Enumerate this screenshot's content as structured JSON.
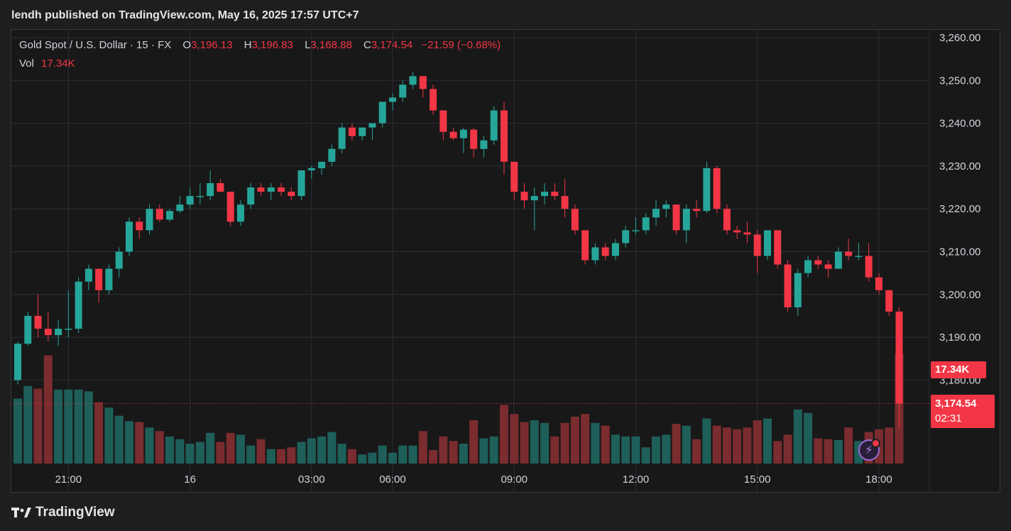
{
  "header": {
    "published_by": "lendh published on TradingView.com, May 16, 2025 17:57 UTC+7"
  },
  "legend": {
    "symbol": "Gold Spot / U.S. Dollar · 15 · FX",
    "o_label": "O",
    "o_value": "3,196.13",
    "h_label": "H",
    "h_value": "3,196.83",
    "l_label": "L",
    "l_value": "3,168.88",
    "c_label": "C",
    "c_value": "3,174.54",
    "change": "−21.59 (−0.68%)",
    "vol_label": "Vol",
    "vol_value": "17.34K"
  },
  "badges": {
    "volume": "17.34K",
    "price": "3,174.54",
    "countdown": "02:31"
  },
  "footer": {
    "brand": "TradingView"
  },
  "colors": {
    "up": "#26a69a",
    "down": "#f23645",
    "up_vol": "#1f5f5a",
    "down_vol": "#7a2c2f",
    "grid": "#2a2e39",
    "background": "#181818"
  },
  "icons": {
    "alert": "lightning-icon"
  },
  "chart_data": {
    "type": "candlestick",
    "title": "Gold Spot / U.S. Dollar",
    "interval": "15",
    "ylim": [
      3170,
      3260
    ],
    "y_ticks": [
      "3,260.00",
      "3,250.00",
      "3,240.00",
      "3,230.00",
      "3,220.00",
      "3,210.00",
      "3,200.00",
      "3,190.00",
      "3,180.00"
    ],
    "x_ticks": [
      "21:00",
      "16",
      "03:00",
      "06:00",
      "09:00",
      "12:00",
      "15:00",
      "18:00"
    ],
    "last_price": 3174.54,
    "series": [
      {
        "o": 3180,
        "h": 3189,
        "l": 3179,
        "c": 3188.5,
        "v": 0.72
      },
      {
        "o": 3188.5,
        "h": 3196,
        "l": 3188,
        "c": 3195,
        "v": 0.86
      },
      {
        "o": 3195,
        "h": 3200,
        "l": 3190,
        "c": 3192,
        "v": 0.83
      },
      {
        "o": 3192,
        "h": 3196,
        "l": 3189,
        "c": 3190.5,
        "v": 1.2
      },
      {
        "o": 3190.5,
        "h": 3194,
        "l": 3188,
        "c": 3192,
        "v": 0.82
      },
      {
        "o": 3192,
        "h": 3201,
        "l": 3190,
        "c": 3192,
        "v": 0.82
      },
      {
        "o": 3192,
        "h": 3204,
        "l": 3191,
        "c": 3203,
        "v": 0.82
      },
      {
        "o": 3203,
        "h": 3207,
        "l": 3201,
        "c": 3206,
        "v": 0.8
      },
      {
        "o": 3206,
        "h": 3206,
        "l": 3198,
        "c": 3201,
        "v": 0.68
      },
      {
        "o": 3201,
        "h": 3207,
        "l": 3200,
        "c": 3206,
        "v": 0.62
      },
      {
        "o": 3206,
        "h": 3211,
        "l": 3204,
        "c": 3210,
        "v": 0.53
      },
      {
        "o": 3210,
        "h": 3218,
        "l": 3209,
        "c": 3217,
        "v": 0.47
      },
      {
        "o": 3217,
        "h": 3218,
        "l": 3213,
        "c": 3215,
        "v": 0.46
      },
      {
        "o": 3215,
        "h": 3221,
        "l": 3214,
        "c": 3220,
        "v": 0.4
      },
      {
        "o": 3220,
        "h": 3221,
        "l": 3217,
        "c": 3217.5,
        "v": 0.36
      },
      {
        "o": 3217.5,
        "h": 3220,
        "l": 3217,
        "c": 3219.5,
        "v": 0.3
      },
      {
        "o": 3219.5,
        "h": 3223,
        "l": 3219,
        "c": 3221,
        "v": 0.27
      },
      {
        "o": 3221,
        "h": 3225,
        "l": 3220,
        "c": 3223,
        "v": 0.22
      },
      {
        "o": 3223,
        "h": 3226,
        "l": 3221,
        "c": 3223,
        "v": 0.24
      },
      {
        "o": 3223,
        "h": 3229,
        "l": 3222,
        "c": 3226,
        "v": 0.34
      },
      {
        "o": 3226,
        "h": 3227,
        "l": 3224,
        "c": 3224,
        "v": 0.24
      },
      {
        "o": 3224,
        "h": 3224,
        "l": 3216,
        "c": 3217,
        "v": 0.34
      },
      {
        "o": 3217,
        "h": 3222,
        "l": 3216,
        "c": 3221,
        "v": 0.32
      },
      {
        "o": 3221,
        "h": 3226,
        "l": 3220,
        "c": 3225,
        "v": 0.2
      },
      {
        "o": 3225,
        "h": 3226,
        "l": 3223,
        "c": 3224,
        "v": 0.27
      },
      {
        "o": 3224,
        "h": 3226,
        "l": 3222,
        "c": 3225,
        "v": 0.16
      },
      {
        "o": 3225,
        "h": 3226,
        "l": 3223,
        "c": 3224,
        "v": 0.16
      },
      {
        "o": 3224,
        "h": 3225,
        "l": 3222,
        "c": 3223,
        "v": 0.18
      },
      {
        "o": 3223,
        "h": 3229,
        "l": 3222,
        "c": 3229,
        "v": 0.24
      },
      {
        "o": 3229,
        "h": 3230,
        "l": 3227,
        "c": 3229.5,
        "v": 0.28
      },
      {
        "o": 3229.5,
        "h": 3231,
        "l": 3228,
        "c": 3231,
        "v": 0.3
      },
      {
        "o": 3231,
        "h": 3235,
        "l": 3230,
        "c": 3234,
        "v": 0.35
      },
      {
        "o": 3234,
        "h": 3240,
        "l": 3233,
        "c": 3239,
        "v": 0.22
      },
      {
        "o": 3239,
        "h": 3240,
        "l": 3236,
        "c": 3237,
        "v": 0.16
      },
      {
        "o": 3237,
        "h": 3239,
        "l": 3236,
        "c": 3239,
        "v": 0.1
      },
      {
        "o": 3239,
        "h": 3240,
        "l": 3236,
        "c": 3240,
        "v": 0.12
      },
      {
        "o": 3240,
        "h": 3245,
        "l": 3239,
        "c": 3245,
        "v": 0.2
      },
      {
        "o": 3245,
        "h": 3247,
        "l": 3243,
        "c": 3246,
        "v": 0.12
      },
      {
        "o": 3246,
        "h": 3250,
        "l": 3245,
        "c": 3249,
        "v": 0.2
      },
      {
        "o": 3249,
        "h": 3252,
        "l": 3248,
        "c": 3251,
        "v": 0.2
      },
      {
        "o": 3251,
        "h": 3251,
        "l": 3246,
        "c": 3248,
        "v": 0.36
      },
      {
        "o": 3248,
        "h": 3249,
        "l": 3242,
        "c": 3243,
        "v": 0.15
      },
      {
        "o": 3243,
        "h": 3243,
        "l": 3236,
        "c": 3238,
        "v": 0.3
      },
      {
        "o": 3238,
        "h": 3239,
        "l": 3236,
        "c": 3236.5,
        "v": 0.25
      },
      {
        "o": 3236.5,
        "h": 3239,
        "l": 3233,
        "c": 3238.5,
        "v": 0.22
      },
      {
        "o": 3238.5,
        "h": 3239,
        "l": 3232,
        "c": 3234,
        "v": 0.48
      },
      {
        "o": 3234,
        "h": 3237,
        "l": 3232,
        "c": 3236,
        "v": 0.28
      },
      {
        "o": 3236,
        "h": 3244,
        "l": 3235,
        "c": 3243,
        "v": 0.3
      },
      {
        "o": 3243,
        "h": 3245,
        "l": 3228,
        "c": 3231,
        "v": 0.65
      },
      {
        "o": 3231,
        "h": 3231,
        "l": 3222,
        "c": 3224,
        "v": 0.55
      },
      {
        "o": 3224,
        "h": 3226,
        "l": 3220,
        "c": 3222,
        "v": 0.46
      },
      {
        "o": 3222,
        "h": 3225,
        "l": 3215,
        "c": 3223,
        "v": 0.48
      },
      {
        "o": 3223,
        "h": 3226,
        "l": 3221,
        "c": 3224,
        "v": 0.45
      },
      {
        "o": 3224,
        "h": 3226,
        "l": 3222,
        "c": 3223,
        "v": 0.3
      },
      {
        "o": 3223,
        "h": 3227,
        "l": 3218,
        "c": 3220,
        "v": 0.45
      },
      {
        "o": 3220,
        "h": 3221,
        "l": 3214,
        "c": 3215,
        "v": 0.52
      },
      {
        "o": 3215,
        "h": 3215,
        "l": 3207,
        "c": 3208,
        "v": 0.55
      },
      {
        "o": 3208,
        "h": 3212,
        "l": 3207,
        "c": 3211,
        "v": 0.45
      },
      {
        "o": 3211,
        "h": 3212,
        "l": 3208,
        "c": 3209,
        "v": 0.42
      },
      {
        "o": 3209,
        "h": 3213,
        "l": 3208,
        "c": 3212,
        "v": 0.32
      },
      {
        "o": 3212,
        "h": 3216,
        "l": 3211,
        "c": 3215,
        "v": 0.3
      },
      {
        "o": 3215,
        "h": 3218,
        "l": 3214,
        "c": 3215,
        "v": 0.3
      },
      {
        "o": 3215,
        "h": 3219,
        "l": 3214,
        "c": 3218,
        "v": 0.18
      },
      {
        "o": 3218,
        "h": 3222,
        "l": 3216,
        "c": 3220,
        "v": 0.3
      },
      {
        "o": 3220,
        "h": 3222,
        "l": 3218,
        "c": 3221,
        "v": 0.32
      },
      {
        "o": 3221,
        "h": 3221,
        "l": 3214,
        "c": 3215,
        "v": 0.44
      },
      {
        "o": 3215,
        "h": 3221,
        "l": 3212,
        "c": 3220,
        "v": 0.42
      },
      {
        "o": 3220,
        "h": 3222,
        "l": 3218,
        "c": 3219.5,
        "v": 0.27
      },
      {
        "o": 3219.5,
        "h": 3231,
        "l": 3219,
        "c": 3229.5,
        "v": 0.5
      },
      {
        "o": 3229.5,
        "h": 3230,
        "l": 3219,
        "c": 3220,
        "v": 0.42
      },
      {
        "o": 3220,
        "h": 3221,
        "l": 3214,
        "c": 3215,
        "v": 0.4
      },
      {
        "o": 3215,
        "h": 3216,
        "l": 3213,
        "c": 3214.5,
        "v": 0.38
      },
      {
        "o": 3214.5,
        "h": 3217,
        "l": 3212,
        "c": 3214,
        "v": 0.4
      },
      {
        "o": 3214,
        "h": 3215,
        "l": 3205,
        "c": 3209,
        "v": 0.48
      },
      {
        "o": 3209,
        "h": 3215,
        "l": 3208,
        "c": 3215,
        "v": 0.5
      },
      {
        "o": 3215,
        "h": 3215,
        "l": 3206,
        "c": 3207,
        "v": 0.25
      },
      {
        "o": 3207,
        "h": 3208,
        "l": 3196,
        "c": 3197,
        "v": 0.32
      },
      {
        "o": 3197,
        "h": 3206,
        "l": 3195,
        "c": 3205,
        "v": 0.6
      },
      {
        "o": 3205,
        "h": 3209,
        "l": 3204,
        "c": 3208,
        "v": 0.56
      },
      {
        "o": 3208,
        "h": 3209,
        "l": 3206,
        "c": 3207,
        "v": 0.28
      },
      {
        "o": 3207,
        "h": 3208,
        "l": 3204,
        "c": 3206,
        "v": 0.27
      },
      {
        "o": 3206,
        "h": 3211,
        "l": 3206,
        "c": 3210,
        "v": 0.26
      },
      {
        "o": 3210,
        "h": 3213,
        "l": 3208,
        "c": 3209,
        "v": 0.4
      },
      {
        "o": 3209,
        "h": 3212,
        "l": 3208,
        "c": 3209,
        "v": 0.25
      },
      {
        "o": 3209,
        "h": 3212,
        "l": 3203,
        "c": 3204,
        "v": 0.35
      },
      {
        "o": 3204,
        "h": 3205,
        "l": 3200,
        "c": 3201,
        "v": 0.38
      },
      {
        "o": 3201,
        "h": 3201,
        "l": 3195,
        "c": 3196,
        "v": 0.4
      },
      {
        "o": 3196,
        "h": 3197,
        "l": 3169,
        "c": 3174.54,
        "v": 1.22
      }
    ]
  }
}
